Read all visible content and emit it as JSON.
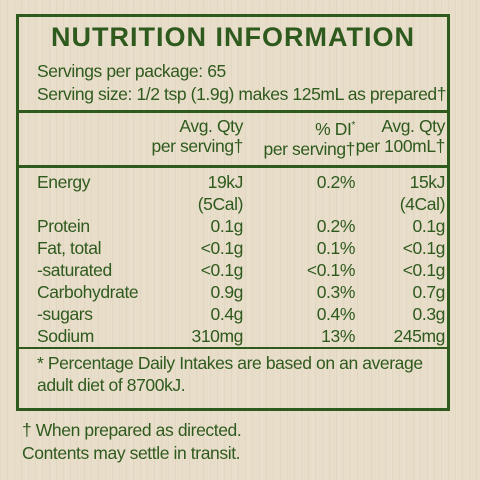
{
  "panel": {
    "title": "NUTRITION INFORMATION",
    "servings_per_package": "Servings per package: 65",
    "serving_size": "Serving size: 1/2 tsp (1.9g) makes 125mL as prepared†"
  },
  "columns": {
    "qty_serving": [
      "Avg. Qty",
      "per serving†"
    ],
    "di_serving": [
      "% DI*",
      "per serving†"
    ],
    "qty_100ml": [
      "Avg. Qty",
      "per 100mL†"
    ]
  },
  "rows": [
    {
      "label": "Energy",
      "qty_serving": "19kJ",
      "di_serving": "0.2%",
      "qty_100ml": "15kJ"
    },
    {
      "label": "",
      "qty_serving": "(5Cal)",
      "di_serving": "",
      "qty_100ml": "(4Cal)"
    },
    {
      "label": "Protein",
      "qty_serving": "0.1g",
      "di_serving": "0.2%",
      "qty_100ml": "0.1g"
    },
    {
      "label": "Fat, total",
      "qty_serving": "<0.1g",
      "di_serving": "0.1%",
      "qty_100ml": "<0.1g"
    },
    {
      "label": "-saturated",
      "qty_serving": "<0.1g",
      "di_serving": "<0.1%",
      "qty_100ml": "<0.1g"
    },
    {
      "label": "Carbohydrate",
      "qty_serving": "0.9g",
      "di_serving": "0.3%",
      "qty_100ml": "0.7g"
    },
    {
      "label": "-sugars",
      "qty_serving": "0.4g",
      "di_serving": "0.4%",
      "qty_100ml": "0.3g"
    },
    {
      "label": "Sodium",
      "qty_serving": "310mg",
      "di_serving": "13%",
      "qty_100ml": "245mg"
    }
  ],
  "footnote": [
    "* Percentage Daily Intakes are based on an average",
    "adult diet of 8700kJ."
  ],
  "notes": [
    "† When prepared as directed.",
    "Contents may settle in transit."
  ],
  "colors": {
    "ink": "#2f5a1e",
    "background": "#e7ddc9"
  }
}
